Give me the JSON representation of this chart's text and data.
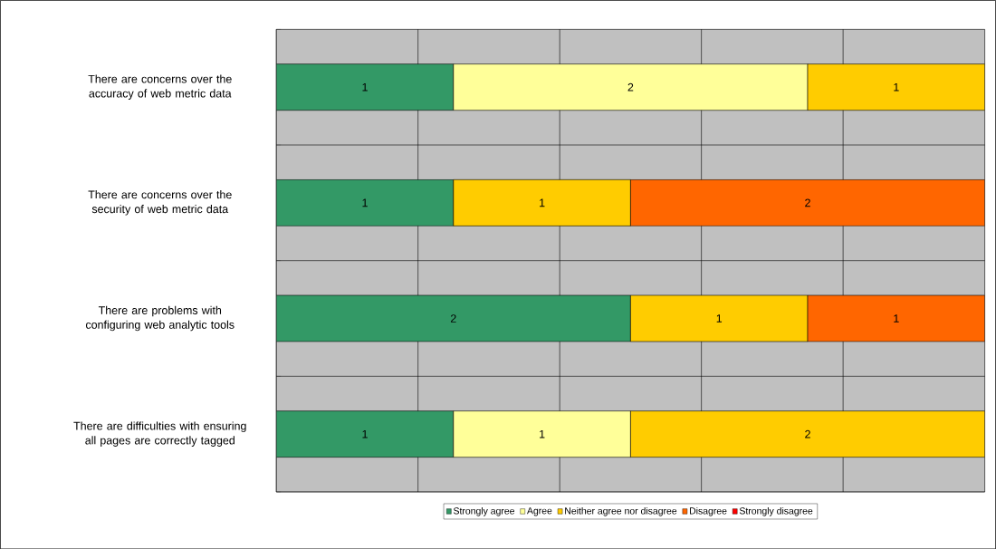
{
  "chart_data": {
    "type": "bar",
    "orientation": "horizontal",
    "stacked": true,
    "data_labels": true,
    "grid": true,
    "legend": "bottom",
    "tick_labels": "y",
    "categories": [
      "There are concerns over the accuracy of web metric data",
      "There are concerns over the security of web metric data",
      "There are problems with configuring web analytic tools",
      "There are difficulties with ensuring all pages are correctly tagged"
    ],
    "xlim": [
      0,
      4
    ],
    "xticks": [
      {
        "value": 0,
        "label": null
      },
      {
        "value": 0.8,
        "label": null
      },
      {
        "value": 1.6,
        "label": null
      },
      {
        "value": 2.4,
        "label": null
      },
      {
        "value": 3.2,
        "label": null
      },
      {
        "value": 4,
        "label": null
      }
    ],
    "series": [
      {
        "name": "Strongly agree",
        "color": "#339966",
        "values": [
          1,
          1,
          2,
          1
        ]
      },
      {
        "name": "Agree",
        "color": "#ffff99",
        "values": [
          2,
          null,
          null,
          1
        ]
      },
      {
        "name": "Neither agree nor disagree",
        "color": "#ffcc00",
        "values": [
          1,
          1,
          1,
          2
        ]
      },
      {
        "name": "Disagree",
        "color": "#ff6600",
        "values": [
          null,
          2,
          1,
          null
        ]
      },
      {
        "name": "Strongly disagree",
        "color": "#ff0000",
        "values": [
          null,
          null,
          null,
          null
        ]
      }
    ]
  }
}
